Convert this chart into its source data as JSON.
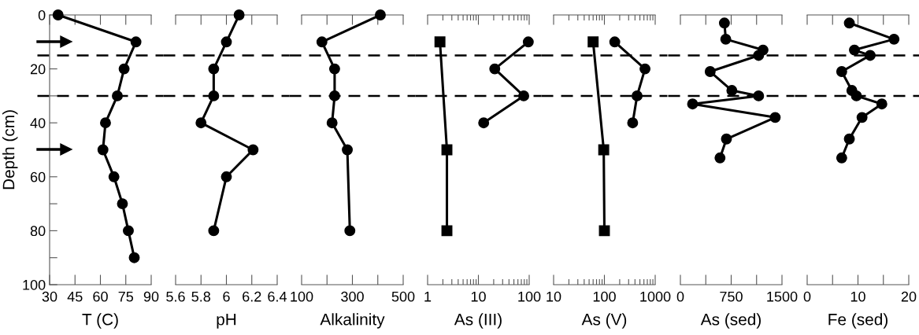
{
  "chart_data": [
    {
      "type": "line",
      "xlabel": "T (C)",
      "ylabel": "Depth (cm)",
      "xlim": [
        30,
        90
      ],
      "xticks": [
        30,
        45,
        60,
        75,
        90
      ],
      "ylim": [
        100,
        0
      ],
      "yticks": [
        0,
        {
          "value": 10,
          "label": null
        },
        20,
        {
          "value": 30,
          "label": null
        },
        40,
        {
          "value": 50,
          "label": null
        },
        60,
        {
          "value": 70,
          "label": null
        },
        80,
        {
          "value": 90,
          "label": null
        },
        100
      ],
      "series": [
        {
          "color": "#000000",
          "marker": "circle",
          "x": [
            35,
            81,
            74,
            70,
            63,
            61.5,
            68,
            73,
            76.5,
            80
          ],
          "values": [
            0,
            10,
            20,
            30,
            40,
            50,
            60,
            70,
            80,
            90
          ]
        }
      ],
      "ref_lines": [
        {
          "axis": "y",
          "value": 15,
          "line_style": "dashed"
        },
        {
          "axis": "y",
          "value": 30,
          "line_style": "dashed"
        }
      ]
    },
    {
      "type": "line",
      "xlabel": "pH",
      "xlim": [
        5.6,
        6.4
      ],
      "xticks": [
        {
          "value": 5.6,
          "label": "5.6"
        },
        {
          "value": 5.8,
          "label": "5.8"
        },
        6,
        {
          "value": 6.2,
          "label": "6.2"
        },
        {
          "value": 6.4,
          "label": "6.4"
        }
      ],
      "ylim": [
        100,
        0
      ],
      "tick_labels": "x",
      "series": [
        {
          "color": "#000000",
          "marker": "circle",
          "x": [
            6.1,
            6.0,
            5.9,
            5.9,
            5.8,
            6.21,
            6.0,
            5.9
          ],
          "values": [
            0,
            10,
            20,
            30,
            40,
            50,
            60,
            80
          ]
        }
      ],
      "ref_lines": [
        {
          "axis": "y",
          "value": 15,
          "line_style": "dashed"
        },
        {
          "axis": "y",
          "value": 30,
          "line_style": "dashed"
        }
      ]
    },
    {
      "type": "line",
      "xlabel": "Alkalinity",
      "xlim": [
        100,
        500
      ],
      "xticks": [
        100,
        {
          "value": 200,
          "label": null
        },
        300,
        {
          "value": 400,
          "label": null
        },
        500
      ],
      "ylim": [
        100,
        0
      ],
      "tick_labels": "x",
      "series": [
        {
          "color": "#000000",
          "marker": "circle",
          "x": [
            410,
            180,
            230,
            230,
            220,
            280,
            290
          ],
          "values": [
            0,
            10,
            20,
            30,
            40,
            50,
            80
          ]
        }
      ],
      "ref_lines": [
        {
          "axis": "y",
          "value": 15,
          "line_style": "dashed"
        },
        {
          "axis": "y",
          "value": 30,
          "line_style": "dashed"
        }
      ]
    },
    {
      "type": "line",
      "xlabel": "As (III)",
      "log": "x",
      "xlim": [
        1,
        100
      ],
      "xticks": [
        1,
        10,
        100
      ],
      "ylim": [
        100,
        0
      ],
      "tick_labels": "x",
      "series": [
        {
          "color": "#000000",
          "marker": "square",
          "x": [
            1.75,
            2.4,
            2.4
          ],
          "values": [
            10,
            50,
            80
          ]
        },
        {
          "color": "#000000",
          "marker": "circle",
          "x": [
            96,
            21,
            78,
            12.7
          ],
          "values": [
            10,
            20,
            30,
            40
          ]
        }
      ],
      "ref_lines": [
        {
          "axis": "y",
          "value": 15,
          "line_style": "dashed"
        },
        {
          "axis": "y",
          "value": 30,
          "line_style": "dashed"
        }
      ]
    },
    {
      "type": "line",
      "xlabel": "As (V)",
      "log": "x",
      "xlim": [
        10,
        1000
      ],
      "xticks": [
        10,
        100,
        1000
      ],
      "ylim": [
        100,
        0
      ],
      "tick_labels": "x",
      "series": [
        {
          "color": "#000000",
          "marker": "square",
          "x": [
            60,
            97,
            100
          ],
          "values": [
            10,
            50,
            80
          ]
        },
        {
          "color": "#000000",
          "marker": "circle",
          "x": [
            160,
            630,
            440,
            360
          ],
          "values": [
            10,
            20,
            30,
            40
          ]
        }
      ],
      "ref_lines": [
        {
          "axis": "y",
          "value": 15,
          "line_style": "dashed"
        },
        {
          "axis": "y",
          "value": 30,
          "line_style": "dashed"
        }
      ]
    },
    {
      "type": "line",
      "xlabel": "As (sed)",
      "xlim": [
        0,
        1500
      ],
      "xticks": [
        0,
        {
          "value": 375,
          "label": null
        },
        750,
        {
          "value": 1125,
          "label": null
        },
        1500
      ],
      "ylim": [
        100,
        0
      ],
      "tick_labels": "x",
      "series": [
        {
          "color": "#000000",
          "marker": "circle",
          "x": [
            650,
            670,
            1220,
            1155,
            440,
            760,
            1155,
            180,
            1400,
            680,
            585
          ],
          "values": [
            3,
            9,
            13,
            15,
            21,
            28,
            30,
            33,
            38,
            46,
            53
          ]
        }
      ],
      "ref_lines": [
        {
          "axis": "y",
          "value": 15,
          "line_style": "dashed"
        },
        {
          "axis": "y",
          "value": 30,
          "line_style": "dashed"
        }
      ]
    },
    {
      "type": "line",
      "xlabel": "Fe (sed)",
      "xlim": [
        0,
        20
      ],
      "xticks": [
        0,
        {
          "value": 5,
          "label": null
        },
        10,
        {
          "value": 15,
          "label": null
        },
        20
      ],
      "ylim": [
        100,
        0
      ],
      "tick_labels": "x",
      "series": [
        {
          "color": "#000000",
          "marker": "circle",
          "x": [
            8.3,
            17.1,
            9.3,
            12.4,
            6.8,
            8.8,
            9.7,
            14.7,
            10.8,
            8.3,
            6.8
          ],
          "values": [
            3,
            9,
            13,
            15,
            21,
            28,
            30,
            33,
            38,
            46,
            53
          ]
        }
      ],
      "ref_lines": [
        {
          "axis": "y",
          "value": 15,
          "line_style": "dashed"
        },
        {
          "axis": "y",
          "value": 30,
          "line_style": "dashed"
        }
      ]
    }
  ]
}
